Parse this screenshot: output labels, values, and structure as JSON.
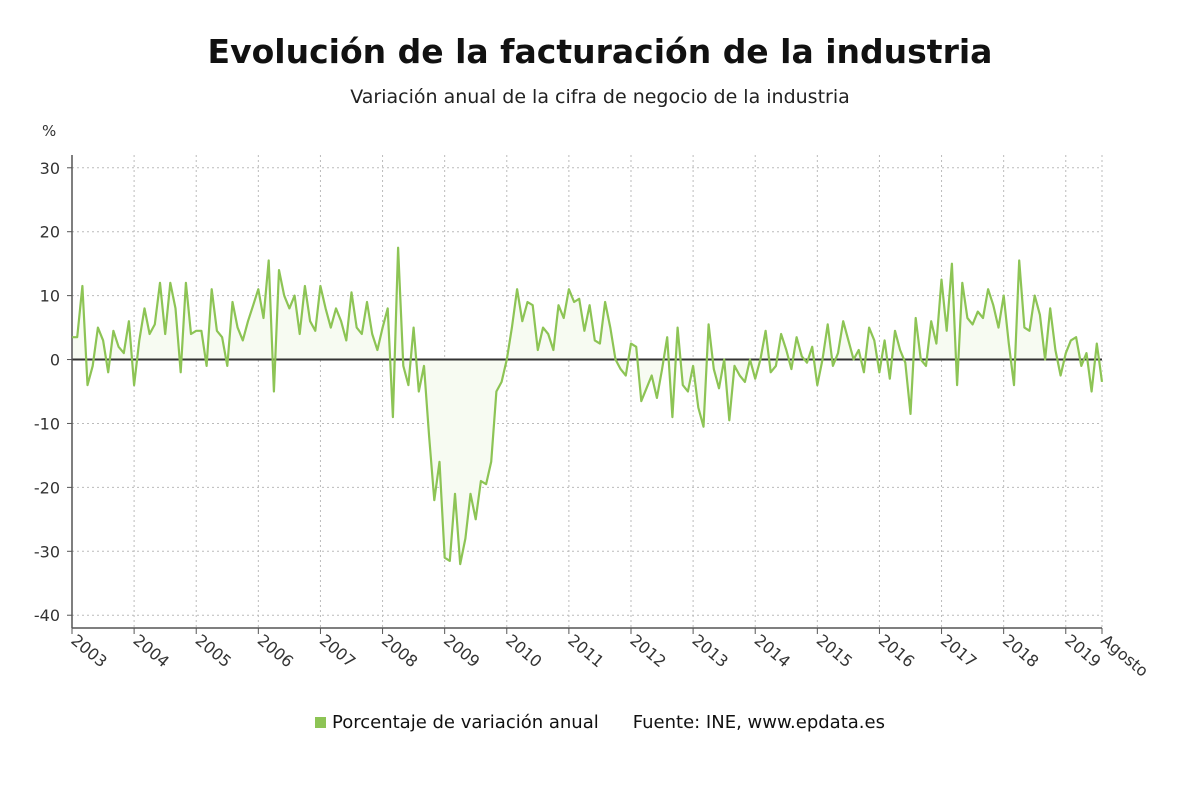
{
  "header": {
    "title": "Evolución de la facturación de la industria",
    "subtitle": "Variación anual de la cifra de negocio de la industria",
    "unit": "%"
  },
  "footer": {
    "legend_label": "Porcentaje de variación anual",
    "source": "Fuente: INE, www.epdata.es"
  },
  "colors": {
    "series": "#8dc455",
    "fill": "#f7fbf2",
    "zero_line": "#333333",
    "grid": "#bbbbbb"
  },
  "chart_data": {
    "type": "area",
    "title": "Evolución de la facturación de la industria",
    "subtitle": "Variación anual de la cifra de negocio de la industria",
    "ylabel": "%",
    "ylim": [
      -42,
      32
    ],
    "yticks": [
      30,
      20,
      10,
      0,
      -10,
      -20,
      -30,
      -40
    ],
    "x_start": "2003-01",
    "x_end": "2019-08",
    "xticks": [
      "2003",
      "2004",
      "2005",
      "2006",
      "2007",
      "2008",
      "2009",
      "2010",
      "2011",
      "2012",
      "2013",
      "2014",
      "2015",
      "2016",
      "2017",
      "2018",
      "2019",
      "Agosto"
    ],
    "grid": true,
    "legend": "bottom",
    "series": [
      {
        "name": "Porcentaje de variación anual",
        "values": [
          3.5,
          3.5,
          11.5,
          -4,
          -1,
          5,
          3,
          -2,
          4.5,
          2,
          1,
          6,
          -4,
          3,
          8,
          4,
          5.5,
          12,
          4,
          12,
          8,
          -2,
          12,
          4,
          4.5,
          4.5,
          -1,
          11,
          4.5,
          3.5,
          -1,
          9,
          5,
          3,
          6,
          8.5,
          11,
          6.5,
          15.5,
          -5,
          14,
          10,
          8,
          10,
          4,
          11.5,
          6,
          4.5,
          11.5,
          8,
          5,
          8,
          6,
          3,
          10.5,
          5,
          4,
          9,
          4,
          1.5,
          5,
          8,
          -9,
          17.5,
          -1,
          -4,
          5,
          -5,
          -1,
          -12,
          -22,
          -16,
          -31,
          -31.5,
          -21,
          -32,
          -28,
          -21,
          -25,
          -19,
          -19.5,
          -16,
          -5,
          -3.5,
          0,
          5,
          11,
          6,
          9,
          8.5,
          1.5,
          5,
          4,
          1.5,
          8.5,
          6.5,
          11,
          9,
          9.5,
          4.5,
          8.5,
          3,
          2.5,
          9,
          5,
          0,
          -1.5,
          -2.5,
          2.5,
          2,
          -6.5,
          -4.5,
          -2.5,
          -6,
          -1.5,
          3.5,
          -9,
          5,
          -4,
          -5,
          -1,
          -7.5,
          -10.5,
          5.5,
          -1.5,
          -4.5,
          0,
          -9.5,
          -1,
          -2.5,
          -3.5,
          0,
          -3,
          0,
          4.5,
          -2,
          -1,
          4,
          1.5,
          -1.5,
          3.5,
          0.5,
          -0.5,
          2,
          -4,
          0,
          5.5,
          -1,
          1,
          6,
          3,
          0,
          1.5,
          -2,
          5,
          3,
          -2,
          3,
          -3,
          4.5,
          1.5,
          -0.5,
          -8.5,
          6.5,
          0,
          -1,
          6,
          2.5,
          12.5,
          4.5,
          15,
          -4,
          12,
          6.5,
          5.5,
          7.5,
          6.5,
          11,
          8.5,
          5,
          10,
          2.5,
          -4,
          15.5,
          5,
          4.5,
          10,
          7,
          0,
          8,
          1.5,
          -2.5,
          1,
          3,
          3.5,
          -1,
          1,
          -5,
          2.5,
          -3.5
        ]
      }
    ]
  }
}
